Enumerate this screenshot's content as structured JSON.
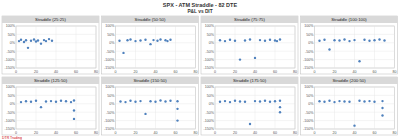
{
  "header": {
    "title": "SPX - ATM Straddle - 82 DTE",
    "subtitle": "P&L vs DIT",
    "footer": "DTR Trading"
  },
  "chart_data": [
    {
      "type": "scatter",
      "title": "Straddle (25:25)",
      "color": "#4f81bd",
      "marker": "circle",
      "grid": true,
      "x": [
        3,
        5,
        8,
        10,
        12,
        15,
        18,
        20,
        22,
        25,
        28,
        30,
        33,
        36
      ],
      "values": [
        10,
        18,
        5,
        15,
        -30,
        12,
        20,
        8,
        14,
        -5,
        16,
        10,
        22,
        12
      ],
      "xlim": [
        0,
        80
      ],
      "xticks": [
        0,
        20,
        40,
        60,
        80
      ],
      "ylim": [
        -150,
        100
      ],
      "yticks": [
        {
          "value": -150,
          "label": "-150%"
        },
        {
          "value": -100,
          "label": "-100%"
        },
        {
          "value": -50,
          "label": "-50%"
        },
        {
          "value": 0,
          "label": "0%"
        },
        {
          "value": 50,
          "label": "50%"
        },
        {
          "value": 100,
          "label": "100%"
        }
      ]
    },
    {
      "type": "scatter",
      "title": "Straddle (50:50)",
      "color": "#4f81bd",
      "marker": "circle",
      "grid": true,
      "x": [
        4,
        8,
        12,
        15,
        20,
        25,
        30,
        35,
        38,
        42,
        45,
        50,
        52,
        55
      ],
      "values": [
        12,
        -60,
        15,
        20,
        10,
        14,
        18,
        -8,
        16,
        12,
        20,
        15,
        10,
        18
      ],
      "xlim": [
        0,
        80
      ],
      "xticks": [
        0,
        20,
        40,
        60,
        80
      ],
      "ylim": [
        -150,
        100
      ],
      "yticks": [
        {
          "value": -150,
          "label": "-150%"
        },
        {
          "value": -100,
          "label": "-100%"
        },
        {
          "value": -50,
          "label": "-50%"
        },
        {
          "value": 0,
          "label": "0%"
        },
        {
          "value": 50,
          "label": "50%"
        },
        {
          "value": 100,
          "label": "100%"
        }
      ]
    },
    {
      "type": "scatter",
      "title": "Straddle (75:75)",
      "color": "#4f81bd",
      "marker": "circle",
      "grid": true,
      "x": [
        5,
        10,
        15,
        20,
        25,
        30,
        35,
        40,
        45,
        50,
        55,
        60,
        62,
        65
      ],
      "values": [
        15,
        10,
        18,
        12,
        -100,
        14,
        20,
        -90,
        16,
        12,
        18,
        14,
        10,
        20
      ],
      "xlim": [
        0,
        80
      ],
      "xticks": [
        0,
        20,
        40,
        60,
        80
      ],
      "ylim": [
        -150,
        100
      ],
      "yticks": [
        {
          "value": -150,
          "label": "-150%"
        },
        {
          "value": -100,
          "label": "-100%"
        },
        {
          "value": -50,
          "label": "-50%"
        },
        {
          "value": 0,
          "label": "0%"
        },
        {
          "value": 50,
          "label": "50%"
        },
        {
          "value": 100,
          "label": "100%"
        }
      ]
    },
    {
      "type": "scatter",
      "title": "Straddle (100:100)",
      "color": "#4f81bd",
      "marker": "circle",
      "grid": true,
      "x": [
        5,
        10,
        15,
        20,
        25,
        30,
        35,
        40,
        45,
        50,
        55,
        60,
        65,
        70
      ],
      "values": [
        12,
        18,
        -40,
        15,
        14,
        20,
        10,
        16,
        -110,
        18,
        12,
        15,
        20,
        14
      ],
      "xlim": [
        0,
        80
      ],
      "xticks": [
        0,
        20,
        40,
        60,
        80
      ],
      "ylim": [
        -150,
        100
      ],
      "yticks": [
        {
          "value": -150,
          "label": "-150%"
        },
        {
          "value": -100,
          "label": "-100%"
        },
        {
          "value": -50,
          "label": "-50%"
        },
        {
          "value": 0,
          "label": "0%"
        },
        {
          "value": 50,
          "label": "50%"
        },
        {
          "value": 100,
          "label": "100%"
        }
      ]
    },
    {
      "type": "scatter",
      "title": "Straddle (125:50)",
      "color": "#4f81bd",
      "marker": "circle",
      "grid": true,
      "x": [
        5,
        10,
        15,
        20,
        25,
        30,
        35,
        40,
        45,
        50,
        55,
        58,
        58,
        58
      ],
      "values": [
        10,
        15,
        12,
        18,
        -20,
        14,
        16,
        12,
        18,
        15,
        10,
        -40,
        -90,
        20
      ],
      "xlim": [
        0,
        80
      ],
      "xticks": [
        0,
        20,
        40,
        60,
        80
      ],
      "ylim": [
        -150,
        100
      ],
      "yticks": [
        {
          "value": -150,
          "label": "-150%"
        },
        {
          "value": -100,
          "label": "-100%"
        },
        {
          "value": -50,
          "label": "-50%"
        },
        {
          "value": 0,
          "label": "0%"
        },
        {
          "value": 50,
          "label": "50%"
        },
        {
          "value": 100,
          "label": "100%"
        }
      ]
    },
    {
      "type": "scatter",
      "title": "Straddle (150:50)",
      "color": "#4f81bd",
      "marker": "circle",
      "grid": true,
      "x": [
        5,
        10,
        15,
        20,
        25,
        30,
        35,
        40,
        45,
        50,
        55,
        62,
        62,
        62
      ],
      "values": [
        14,
        10,
        18,
        12,
        16,
        -60,
        15,
        12,
        20,
        14,
        18,
        -30,
        -100,
        15
      ],
      "xlim": [
        0,
        80
      ],
      "xticks": [
        0,
        20,
        40,
        60,
        80
      ],
      "ylim": [
        -150,
        100
      ],
      "yticks": [
        {
          "value": -150,
          "label": "-150%"
        },
        {
          "value": -100,
          "label": "-100%"
        },
        {
          "value": -50,
          "label": "-50%"
        },
        {
          "value": 0,
          "label": "0%"
        },
        {
          "value": 50,
          "label": "50%"
        },
        {
          "value": 100,
          "label": "100%"
        }
      ]
    },
    {
      "type": "scatter",
      "title": "Straddle (175:50)",
      "color": "#4f81bd",
      "marker": "circle",
      "grid": true,
      "x": [
        5,
        10,
        15,
        20,
        25,
        30,
        35,
        40,
        45,
        50,
        55,
        60,
        65,
        65,
        65
      ],
      "values": [
        12,
        16,
        10,
        18,
        14,
        12,
        -120,
        16,
        14,
        18,
        12,
        15,
        -50,
        -20,
        18
      ],
      "xlim": [
        0,
        80
      ],
      "xticks": [
        0,
        20,
        40,
        60,
        80
      ],
      "ylim": [
        -150,
        100
      ],
      "yticks": [
        {
          "value": -150,
          "label": "-150%"
        },
        {
          "value": -100,
          "label": "-100%"
        },
        {
          "value": -50,
          "label": "-50%"
        },
        {
          "value": 0,
          "label": "0%"
        },
        {
          "value": 50,
          "label": "50%"
        },
        {
          "value": 100,
          "label": "100%"
        }
      ]
    },
    {
      "type": "scatter",
      "title": "Straddle (200:50)",
      "color": "#4f81bd",
      "marker": "circle",
      "grid": true,
      "x": [
        5,
        10,
        15,
        20,
        25,
        30,
        35,
        40,
        45,
        50,
        55,
        60,
        68,
        68,
        68
      ],
      "values": [
        15,
        12,
        18,
        10,
        16,
        14,
        12,
        -130,
        18,
        14,
        16,
        12,
        -70,
        -25,
        16
      ],
      "xlim": [
        0,
        80
      ],
      "xticks": [
        0,
        20,
        40,
        60,
        80
      ],
      "ylim": [
        -150,
        100
      ],
      "yticks": [
        {
          "value": -150,
          "label": "-150%"
        },
        {
          "value": -100,
          "label": "-100%"
        },
        {
          "value": -50,
          "label": "-50%"
        },
        {
          "value": 0,
          "label": "0%"
        },
        {
          "value": 50,
          "label": "50%"
        },
        {
          "value": 100,
          "label": "100%"
        }
      ]
    }
  ]
}
